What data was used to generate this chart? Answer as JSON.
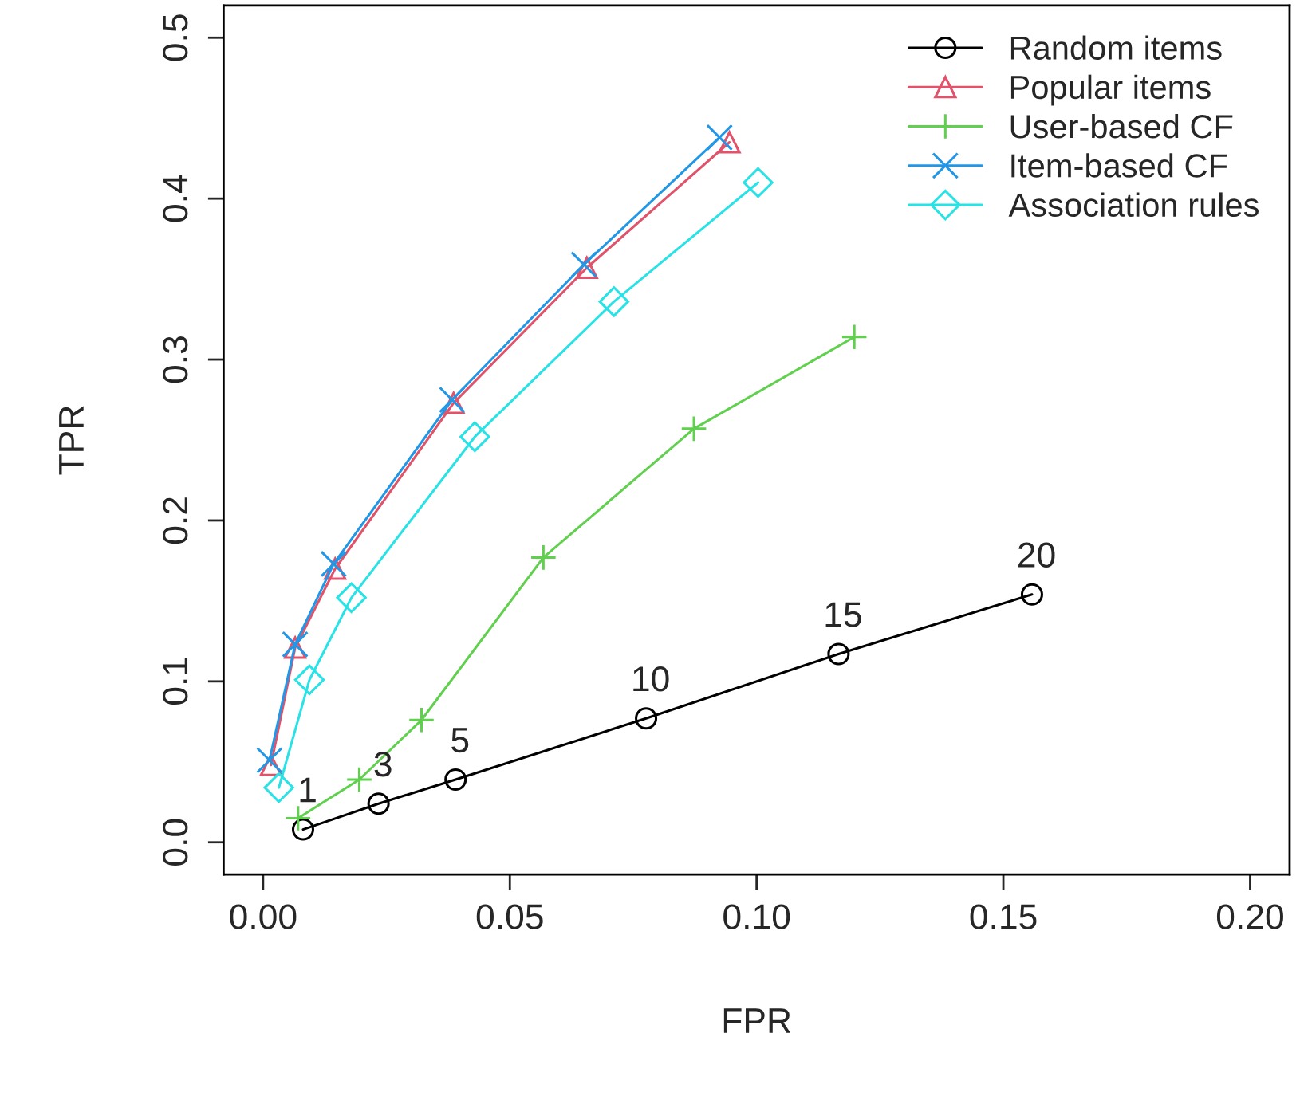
{
  "chart_data": {
    "type": "line",
    "xlabel": "FPR",
    "ylabel": "TPR",
    "xlim": [
      -0.008,
      0.208
    ],
    "ylim": [
      -0.02,
      0.52
    ],
    "xticks": [
      {
        "value": 0,
        "label": "0.00"
      },
      {
        "value": 0.05,
        "label": "0.05"
      },
      {
        "value": 0.1,
        "label": "0.10"
      },
      {
        "value": 0.15,
        "label": "0.15"
      },
      {
        "value": 0.2,
        "label": "0.20"
      }
    ],
    "yticks": [
      {
        "value": 0,
        "label": "0.0"
      },
      {
        "value": 0.1,
        "label": "0.1"
      },
      {
        "value": 0.2,
        "label": "0.2"
      },
      {
        "value": 0.3,
        "label": "0.3"
      },
      {
        "value": 0.4,
        "label": "0.4"
      },
      {
        "value": 0.5,
        "label": "0.5"
      }
    ],
    "grid": false,
    "legend": "top right",
    "line_style": "solid",
    "series": [
      {
        "name": "Random items",
        "color": "#000000",
        "marker": "circle",
        "x": [
          0.0081,
          0.0234,
          0.039,
          0.0776,
          0.1166,
          0.1558
        ],
        "values": [
          0.008,
          0.024,
          0.039,
          0.077,
          0.117,
          0.154
        ]
      },
      {
        "name": "Popular items",
        "color": "#df536b",
        "marker": "triangle",
        "x": [
          0.0016,
          0.0065,
          0.0146,
          0.0386,
          0.0656,
          0.0945
        ],
        "values": [
          0.048,
          0.121,
          0.17,
          0.273,
          0.357,
          0.435
        ]
      },
      {
        "name": "User-based CF",
        "color": "#61d04f",
        "marker": "plus",
        "x": [
          0.0071,
          0.0195,
          0.0321,
          0.0568,
          0.0873,
          0.1198
        ],
        "values": [
          0.015,
          0.039,
          0.076,
          0.177,
          0.257,
          0.314
        ]
      },
      {
        "name": "Item-based CF",
        "color": "#2297e6",
        "marker": "cross",
        "x": [
          0.0013,
          0.0065,
          0.0143,
          0.0383,
          0.065,
          0.0925
        ],
        "values": [
          0.051,
          0.123,
          0.173,
          0.275,
          0.359,
          0.438
        ]
      },
      {
        "name": "Association rules",
        "color": "#28e2e5",
        "marker": "diamond",
        "x": [
          0.0032,
          0.0094,
          0.0179,
          0.0429,
          0.0711,
          0.1003
        ],
        "values": [
          0.034,
          0.101,
          0.152,
          0.252,
          0.336,
          0.41
        ]
      }
    ],
    "annotations": [
      {
        "text": "1",
        "x": 0.0081,
        "y": 0.008
      },
      {
        "text": "3",
        "x": 0.0234,
        "y": 0.024
      },
      {
        "text": "5",
        "x": 0.039,
        "y": 0.039
      },
      {
        "text": "10",
        "x": 0.0776,
        "y": 0.077
      },
      {
        "text": "15",
        "x": 0.1166,
        "y": 0.117
      },
      {
        "text": "20",
        "x": 0.1558,
        "y": 0.154
      }
    ]
  }
}
